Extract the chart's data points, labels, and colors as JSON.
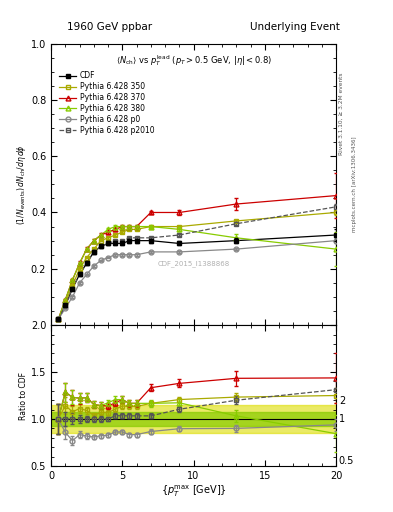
{
  "title_left": "1960 GeV ppbar",
  "title_right": "Underlying Event",
  "subtitle": "<N_{ch}> vs p_T^{lead} (p_T > 0.5 GeV, |eta| < 0.8)",
  "ylabel_main": "(1/N_{events}) dN_{ch}/d\\eta d\\phi",
  "ylabel_ratio": "Ratio to CDF",
  "xlabel": "{p_T^{max} [GeV]}",
  "watermark": "CDF_2015_I1388868",
  "right_label1": "Rivet 3.1.10, ≥ 3.2M events",
  "right_label2": "mcplots.cern.ch [arXiv:1306.3436]",
  "xdata": [
    0.5,
    1.0,
    1.5,
    2.0,
    2.5,
    3.0,
    3.5,
    4.0,
    4.5,
    5.0,
    5.5,
    6.0,
    7.0,
    9.0,
    13.0,
    20.0
  ],
  "CDF_y": [
    0.02,
    0.07,
    0.13,
    0.18,
    0.22,
    0.26,
    0.28,
    0.29,
    0.29,
    0.29,
    0.3,
    0.3,
    0.3,
    0.29,
    0.3,
    0.32
  ],
  "CDF_yerr": [
    0.003,
    0.005,
    0.007,
    0.007,
    0.007,
    0.007,
    0.007,
    0.007,
    0.007,
    0.007,
    0.007,
    0.007,
    0.007,
    0.007,
    0.01,
    0.02
  ],
  "p350_y": [
    0.02,
    0.08,
    0.14,
    0.2,
    0.24,
    0.27,
    0.3,
    0.31,
    0.32,
    0.33,
    0.34,
    0.34,
    0.35,
    0.35,
    0.37,
    0.4
  ],
  "p350_yerr": [
    0.001,
    0.002,
    0.003,
    0.003,
    0.003,
    0.003,
    0.003,
    0.003,
    0.003,
    0.003,
    0.003,
    0.003,
    0.003,
    0.003,
    0.005,
    0.01
  ],
  "p370_y": [
    0.02,
    0.09,
    0.16,
    0.22,
    0.27,
    0.3,
    0.32,
    0.33,
    0.34,
    0.35,
    0.35,
    0.35,
    0.4,
    0.4,
    0.43,
    0.46
  ],
  "p370_yerr": [
    0.001,
    0.003,
    0.005,
    0.006,
    0.006,
    0.006,
    0.006,
    0.006,
    0.006,
    0.006,
    0.006,
    0.006,
    0.007,
    0.008,
    0.02,
    0.08
  ],
  "p380_y": [
    0.02,
    0.09,
    0.16,
    0.22,
    0.27,
    0.3,
    0.32,
    0.34,
    0.35,
    0.35,
    0.35,
    0.35,
    0.35,
    0.34,
    0.31,
    0.27
  ],
  "p380_yerr": [
    0.001,
    0.003,
    0.004,
    0.005,
    0.005,
    0.005,
    0.005,
    0.005,
    0.005,
    0.005,
    0.005,
    0.005,
    0.006,
    0.007,
    0.015,
    0.06
  ],
  "p0_y": [
    0.02,
    0.06,
    0.1,
    0.15,
    0.18,
    0.21,
    0.23,
    0.24,
    0.25,
    0.25,
    0.25,
    0.25,
    0.26,
    0.26,
    0.27,
    0.3
  ],
  "p0_yerr": [
    0.001,
    0.002,
    0.003,
    0.003,
    0.003,
    0.003,
    0.003,
    0.003,
    0.003,
    0.003,
    0.003,
    0.003,
    0.003,
    0.003,
    0.005,
    0.01
  ],
  "p2010_y": [
    0.02,
    0.07,
    0.13,
    0.18,
    0.22,
    0.26,
    0.28,
    0.29,
    0.3,
    0.3,
    0.31,
    0.31,
    0.31,
    0.32,
    0.36,
    0.42
  ],
  "p2010_yerr": [
    0.001,
    0.002,
    0.003,
    0.003,
    0.003,
    0.003,
    0.003,
    0.003,
    0.003,
    0.003,
    0.003,
    0.003,
    0.003,
    0.003,
    0.005,
    0.01
  ],
  "color_CDF": "#000000",
  "color_350": "#aaaa00",
  "color_370": "#cc0000",
  "color_380": "#88cc00",
  "color_p0": "#888888",
  "color_p2010": "#555555",
  "ylim_main": [
    0.0,
    1.0
  ],
  "yticks_main": [
    0.2,
    0.4,
    0.6,
    0.8,
    1.0
  ],
  "ylim_ratio": [
    0.5,
    2.0
  ],
  "yticks_ratio": [
    0.5,
    1.0,
    1.5,
    2.0
  ],
  "xlim": [
    0,
    20
  ],
  "xticks": [
    0,
    5,
    10,
    15,
    20
  ],
  "band_yellow_lo": 0.85,
  "band_yellow_hi": 1.15,
  "band_green_lo": 0.93,
  "band_green_hi": 1.07
}
